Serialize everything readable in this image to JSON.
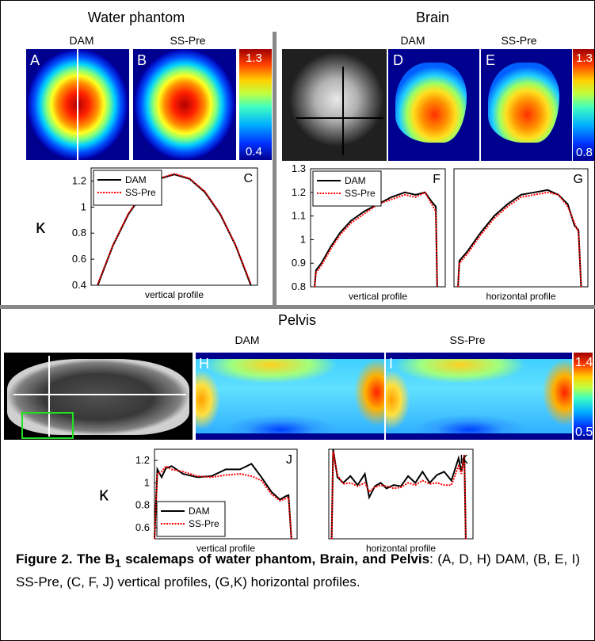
{
  "water": {
    "title": "Water phantom",
    "labels": [
      "DAM",
      "SS-Pre"
    ],
    "panels": [
      "A",
      "B"
    ],
    "colorbar": [
      "1.3",
      "0.4"
    ]
  },
  "brain": {
    "title": "Brain",
    "labels": [
      "DAM",
      "SS-Pre"
    ],
    "panels": [
      "D",
      "E"
    ],
    "colorbar": [
      "1.3",
      "0.8"
    ]
  },
  "pelvis": {
    "title": "Pelvis",
    "labels": [
      "DAM",
      "SS-Pre"
    ],
    "panels": [
      "H",
      "I"
    ],
    "colorbar": [
      "1.4",
      "0.5"
    ]
  },
  "chart_data": [
    {
      "type": "line",
      "panel": "C",
      "xlabel": "vertical profile",
      "ylabel": "κ",
      "legend": "upper left",
      "x": [
        4,
        13.2,
        22.4,
        31.6,
        40.8,
        50,
        59.2,
        68.4,
        77.6,
        86.8,
        96
      ],
      "xlim": [
        0,
        100
      ],
      "ylim": [
        0.4,
        1.3
      ],
      "yticks": [
        0.4,
        0.6,
        0.8,
        1,
        1.2
      ],
      "series": [
        {
          "name": "DAM",
          "color": "#000000",
          "style": "solid",
          "values": [
            0.4,
            0.706,
            0.944,
            1.114,
            1.216,
            1.25,
            1.216,
            1.114,
            0.944,
            0.706,
            0.4
          ]
        },
        {
          "name": "SS-Pre",
          "color": "#ff0000",
          "style": "dotted",
          "values": [
            0.41,
            0.71,
            0.95,
            1.12,
            1.22,
            1.255,
            1.22,
            1.12,
            0.95,
            0.71,
            0.41
          ]
        }
      ]
    },
    {
      "type": "line",
      "panel": "F",
      "xlabel": "vertical profile",
      "legend": "upper left",
      "x": [
        3,
        4,
        8,
        15,
        22,
        30,
        40,
        50,
        60,
        70,
        78,
        85,
        90,
        93,
        94
      ],
      "xlim": [
        0,
        100
      ],
      "ylim": [
        0.8,
        1.3
      ],
      "yticks": [
        0.8,
        0.9,
        1,
        1.1,
        1.2,
        1.3
      ],
      "series": [
        {
          "name": "DAM",
          "color": "#000000",
          "style": "solid",
          "values": [
            0.8,
            0.87,
            0.9,
            0.97,
            1.03,
            1.08,
            1.12,
            1.15,
            1.18,
            1.2,
            1.19,
            1.2,
            1.16,
            1.14,
            0.8
          ]
        },
        {
          "name": "SS-Pre",
          "color": "#ff0000",
          "style": "dotted",
          "values": [
            0.8,
            0.86,
            0.89,
            0.96,
            1.02,
            1.07,
            1.11,
            1.15,
            1.17,
            1.19,
            1.18,
            1.2,
            1.15,
            1.12,
            0.8
          ]
        }
      ]
    },
    {
      "type": "line",
      "panel": "G",
      "xlabel": "horizontal profile",
      "x": [
        3,
        4,
        10,
        20,
        30,
        40,
        50,
        60,
        70,
        78,
        85,
        90,
        93,
        95
      ],
      "xlim": [
        0,
        100
      ],
      "ylim": [
        0.8,
        1.3
      ],
      "series": [
        {
          "color": "#000000",
          "style": "solid",
          "values": [
            0.8,
            0.91,
            0.95,
            1.03,
            1.1,
            1.15,
            1.19,
            1.2,
            1.21,
            1.19,
            1.15,
            1.06,
            1.04,
            0.8
          ]
        },
        {
          "color": "#ff0000",
          "style": "dotted",
          "values": [
            0.8,
            0.9,
            0.94,
            1.02,
            1.09,
            1.14,
            1.18,
            1.19,
            1.2,
            1.19,
            1.14,
            1.07,
            1.03,
            0.8
          ]
        }
      ]
    },
    {
      "type": "line",
      "panel": "J",
      "xlabel": "vertical profile",
      "ylabel": "κ",
      "legend": "lower left",
      "x": [
        0,
        2,
        5,
        8,
        12,
        20,
        30,
        40,
        50,
        60,
        68,
        75,
        82,
        88,
        92,
        94,
        96
      ],
      "xlim": [
        0,
        100
      ],
      "ylim": [
        0.5,
        1.3
      ],
      "yticks": [
        0.6,
        0.8,
        1,
        1.2
      ],
      "series": [
        {
          "name": "DAM",
          "color": "#000000",
          "style": "solid",
          "values": [
            0.5,
            1.12,
            1.05,
            1.13,
            1.15,
            1.08,
            1.05,
            1.06,
            1.12,
            1.12,
            1.17,
            1.05,
            0.92,
            0.85,
            0.88,
            0.89,
            0.5
          ]
        },
        {
          "name": "SS-Pre",
          "color": "#ff0000",
          "style": "dotted",
          "values": [
            0.5,
            1.08,
            1.1,
            1.15,
            1.12,
            1.1,
            1.06,
            1.05,
            1.07,
            1.08,
            1.06,
            1.02,
            0.9,
            0.84,
            0.86,
            0.87,
            0.5
          ]
        }
      ]
    },
    {
      "type": "line",
      "panel": "K",
      "xlabel": "horizontal profile",
      "x": [
        2,
        3,
        6,
        10,
        15,
        20,
        25,
        28,
        32,
        36,
        40,
        45,
        50,
        55,
        60,
        65,
        70,
        75,
        80,
        85,
        90,
        92,
        94,
        95
      ],
      "xlim": [
        0,
        100
      ],
      "ylim": [
        0.5,
        1.3
      ],
      "series": [
        {
          "color": "#000000",
          "style": "solid",
          "values": [
            0.5,
            1.3,
            1.05,
            1.0,
            1.06,
            0.98,
            1.08,
            0.87,
            0.97,
            1.0,
            0.95,
            0.98,
            0.97,
            1.06,
            1.0,
            1.1,
            1.0,
            1.07,
            1.1,
            1.02,
            1.22,
            1.1,
            1.25,
            0.5
          ]
        },
        {
          "color": "#ff0000",
          "style": "dotted",
          "values": [
            0.5,
            1.28,
            1.07,
            0.99,
            1.0,
            0.97,
            1.0,
            0.92,
            0.96,
            0.98,
            0.97,
            0.95,
            0.96,
            1.0,
            0.98,
            1.02,
            0.99,
            1.0,
            0.98,
            0.98,
            1.15,
            1.08,
            1.25,
            0.5
          ]
        }
      ]
    }
  ],
  "caption": {
    "title_pre": "Figure 2. The B",
    "title_sub": "1",
    "title_post": " scalemaps of water phantom, Brain, and Pelvis",
    "text": ": (A, D, H) DAM, (B, E, I) SS-Pre, (C, F, J) vertical profiles, (G,K) horizontal profiles."
  }
}
